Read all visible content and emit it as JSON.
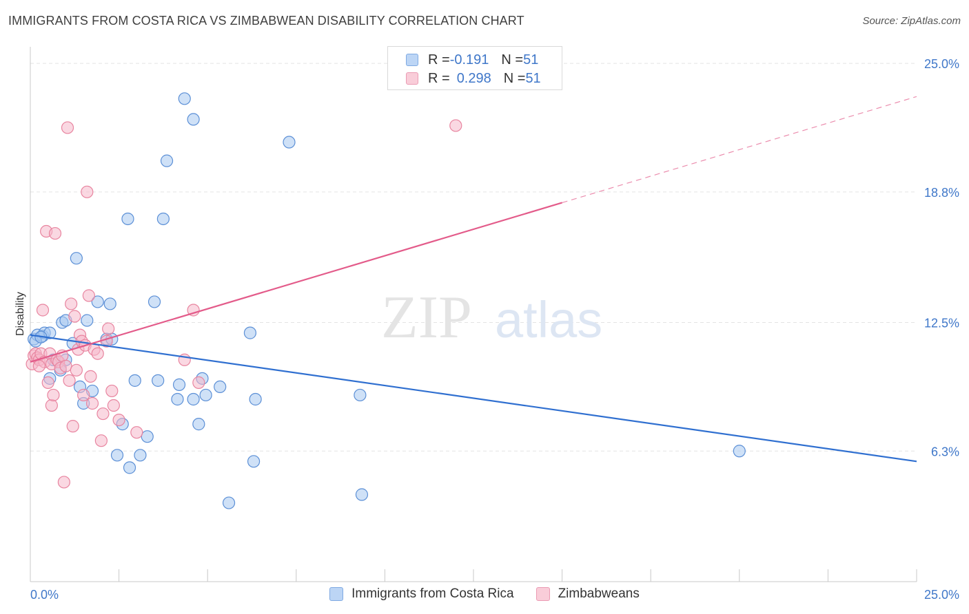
{
  "header": {
    "title": "IMMIGRANTS FROM COSTA RICA VS ZIMBABWEAN DISABILITY CORRELATION CHART",
    "source": "Source: ZipAtlas.com"
  },
  "watermark": {
    "zip": "ZIP",
    "atlas": "atlas"
  },
  "legend": {
    "rows": [
      {
        "r_label": "R = ",
        "r_value": "-0.191",
        "n_label": "N = ",
        "n_value": "51",
        "color": "#a8c8f0"
      },
      {
        "r_label": "R = ",
        "r_value": "0.298",
        "n_label": "N = ",
        "n_value": "51",
        "color": "#f5b8cb"
      }
    ]
  },
  "chart_data": {
    "type": "scatter",
    "title": "IMMIGRANTS FROM COSTA RICA VS ZIMBABWEAN DISABILITY CORRELATION CHART",
    "xlabel": "",
    "ylabel": "Disability",
    "xlim": [
      0,
      25
    ],
    "ylim": [
      0,
      25.8
    ],
    "x_tick_labels": [
      "0.0%",
      "25.0%"
    ],
    "y_ticks": [
      {
        "value": 6.3,
        "label": "6.3%"
      },
      {
        "value": 12.5,
        "label": "12.5%"
      },
      {
        "value": 18.8,
        "label": "18.8%"
      },
      {
        "value": 25.0,
        "label": "25.0%"
      }
    ],
    "grid": true,
    "legend_position": "top-center",
    "series": [
      {
        "name": "Immigrants from Costa Rica",
        "color": "#a8c8f0",
        "stroke": "#5b8fd6",
        "trend_color": "#2f6fd0",
        "trend": {
          "x0": 0.0,
          "y0": 11.9,
          "x1": 25.0,
          "y1": 5.8,
          "dashed_from": null
        },
        "points": [
          [
            0.1,
            11.7
          ],
          [
            0.2,
            11.9
          ],
          [
            0.35,
            11.85
          ],
          [
            0.4,
            12.0
          ],
          [
            0.55,
            12.0
          ],
          [
            0.65,
            10.7
          ],
          [
            0.55,
            9.8
          ],
          [
            0.85,
            10.2
          ],
          [
            1.0,
            10.7
          ],
          [
            0.9,
            12.5
          ],
          [
            1.0,
            12.6
          ],
          [
            1.2,
            11.5
          ],
          [
            1.3,
            15.6
          ],
          [
            1.4,
            9.4
          ],
          [
            1.5,
            8.6
          ],
          [
            1.6,
            12.6
          ],
          [
            1.75,
            9.2
          ],
          [
            1.9,
            13.5
          ],
          [
            2.15,
            11.7
          ],
          [
            2.25,
            13.4
          ],
          [
            2.3,
            11.7
          ],
          [
            2.45,
            6.1
          ],
          [
            2.6,
            7.6
          ],
          [
            2.75,
            17.5
          ],
          [
            2.8,
            5.5
          ],
          [
            2.95,
            9.7
          ],
          [
            3.1,
            6.1
          ],
          [
            3.3,
            7.0
          ],
          [
            3.5,
            13.5
          ],
          [
            3.6,
            9.7
          ],
          [
            3.75,
            17.5
          ],
          [
            3.85,
            20.3
          ],
          [
            4.15,
            8.8
          ],
          [
            4.2,
            9.5
          ],
          [
            4.35,
            23.3
          ],
          [
            4.6,
            22.3
          ],
          [
            4.6,
            8.8
          ],
          [
            4.75,
            7.6
          ],
          [
            4.85,
            9.8
          ],
          [
            4.95,
            9.0
          ],
          [
            5.35,
            9.4
          ],
          [
            5.6,
            3.8
          ],
          [
            6.2,
            12.0
          ],
          [
            6.3,
            5.8
          ],
          [
            6.35,
            8.8
          ],
          [
            7.3,
            21.2
          ],
          [
            9.3,
            9.0
          ],
          [
            9.35,
            4.2
          ],
          [
            20.0,
            6.3
          ],
          [
            0.15,
            11.6
          ],
          [
            0.3,
            11.8
          ]
        ]
      },
      {
        "name": "Zimbabweans",
        "color": "#f5b8cb",
        "stroke": "#e8849f",
        "trend_color": "#e35b8a",
        "trend": {
          "x0": 0.0,
          "y0": 10.6,
          "x1": 25.0,
          "y1": 23.4,
          "dashed_from": 15.0
        },
        "points": [
          [
            0.05,
            10.5
          ],
          [
            0.1,
            10.9
          ],
          [
            0.15,
            11.0
          ],
          [
            0.2,
            10.8
          ],
          [
            0.25,
            10.7
          ],
          [
            0.3,
            11.0
          ],
          [
            0.35,
            13.1
          ],
          [
            0.4,
            10.6
          ],
          [
            0.45,
            16.9
          ],
          [
            0.5,
            9.6
          ],
          [
            0.55,
            11.0
          ],
          [
            0.6,
            10.5
          ],
          [
            0.6,
            8.5
          ],
          [
            0.65,
            9.0
          ],
          [
            0.7,
            16.8
          ],
          [
            0.75,
            10.7
          ],
          [
            0.8,
            10.6
          ],
          [
            0.85,
            10.3
          ],
          [
            0.9,
            10.9
          ],
          [
            0.95,
            4.8
          ],
          [
            1.0,
            10.4
          ],
          [
            1.05,
            21.9
          ],
          [
            1.1,
            9.7
          ],
          [
            1.15,
            13.4
          ],
          [
            1.2,
            7.5
          ],
          [
            1.25,
            12.8
          ],
          [
            1.3,
            10.2
          ],
          [
            1.35,
            11.2
          ],
          [
            1.4,
            11.9
          ],
          [
            1.45,
            11.6
          ],
          [
            1.5,
            9.0
          ],
          [
            1.55,
            11.4
          ],
          [
            1.6,
            18.8
          ],
          [
            1.65,
            13.8
          ],
          [
            1.7,
            9.9
          ],
          [
            1.75,
            8.6
          ],
          [
            1.8,
            11.2
          ],
          [
            1.9,
            11.0
          ],
          [
            2.0,
            6.8
          ],
          [
            2.05,
            8.1
          ],
          [
            2.15,
            11.6
          ],
          [
            2.2,
            12.2
          ],
          [
            2.3,
            9.2
          ],
          [
            2.35,
            8.5
          ],
          [
            2.5,
            7.8
          ],
          [
            3.0,
            7.2
          ],
          [
            4.35,
            10.7
          ],
          [
            4.6,
            13.1
          ],
          [
            4.75,
            9.6
          ],
          [
            12.0,
            22.0
          ],
          [
            0.25,
            10.4
          ]
        ]
      }
    ]
  }
}
